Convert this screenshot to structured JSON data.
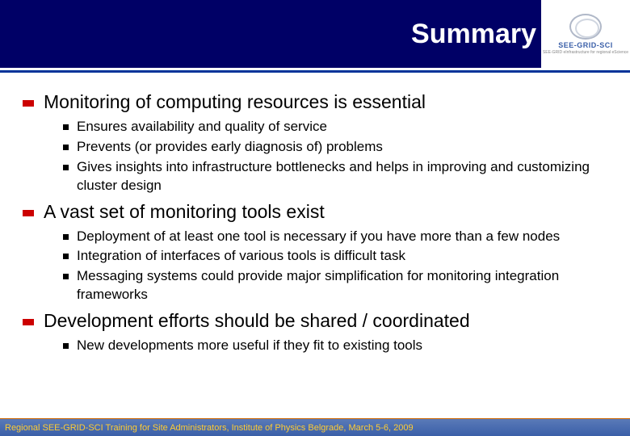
{
  "header": {
    "title": "Summary",
    "logo_text": "SEE-GRID-SCI",
    "logo_sub": "SEE-GRID eInfrastructure for regional eScience"
  },
  "colors": {
    "header_bg": "#000066",
    "divider": "#003399",
    "red_bullet": "#cc0000",
    "footer_text": "#ffcc33",
    "footer_bg_top": "#5a7ab8",
    "footer_bg_bottom": "#3a5fa8",
    "footer_border": "#cc6600"
  },
  "content": {
    "items": [
      {
        "text": "Monitoring of computing resources is essential",
        "subs": [
          "Ensures availability and quality of service",
          "Prevents (or provides early diagnosis of) problems",
          "Gives insights into infrastructure bottlenecks and helps in improving and customizing cluster design"
        ]
      },
      {
        "text": "A vast set of monitoring tools exist",
        "subs": [
          "Deployment of at least one tool is necessary if you have more than a few nodes",
          "Integration of interfaces of various tools is difficult task",
          "Messaging systems could provide major simplification for monitoring integration frameworks"
        ]
      },
      {
        "text": "Development efforts should be shared / coordinated",
        "subs": [
          "New developments more useful if they fit to existing tools"
        ]
      }
    ]
  },
  "footer": {
    "text": "Regional SEE-GRID-SCI Training for Site Administrators, Institute of Physics Belgrade, March 5-6, 2009"
  }
}
